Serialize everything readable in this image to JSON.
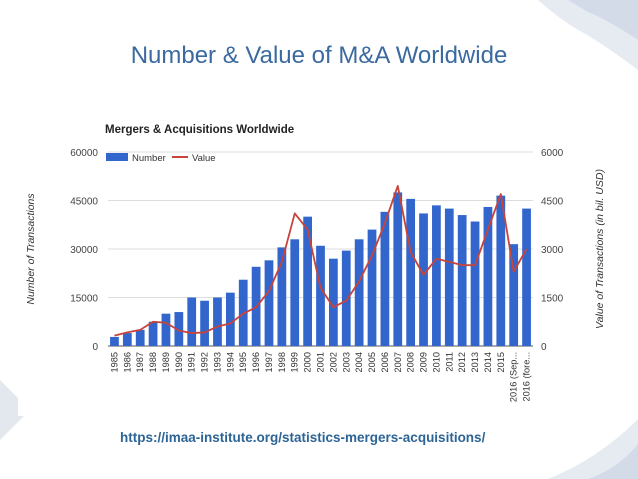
{
  "slide": {
    "title": "Number & Value of M&A Worldwide",
    "source_url": "https://imaa-institute.org/statistics-mergers-acquisitions/"
  },
  "colors": {
    "title": "#3a6aa0",
    "bar": "#3366cc",
    "line": "#c8433a",
    "link": "#2c6496"
  },
  "chart_data": {
    "type": "bar",
    "title": "Mergers & Acquisitions Worldwide",
    "ylabel": "Number of Transactions",
    "y2label": "Value of Transactions (in bil. USD)",
    "categories": [
      "1985",
      "1986",
      "1987",
      "1988",
      "1989",
      "1990",
      "1991",
      "1992",
      "1993",
      "1994",
      "1995",
      "1996",
      "1997",
      "1998",
      "1999",
      "2000",
      "2001",
      "2002",
      "2003",
      "2004",
      "2005",
      "2006",
      "2007",
      "2008",
      "2009",
      "2010",
      "2011",
      "2012",
      "2013",
      "2014",
      "2015",
      "2016 (Sep...",
      "2016 (fore..."
    ],
    "ylim": [
      0,
      60000
    ],
    "y2lim": [
      0,
      6000
    ],
    "yticks": [
      "0",
      "15000",
      "30000",
      "45000",
      "60000"
    ],
    "y2ticks": [
      "0",
      "1500",
      "3000",
      "4500",
      "6000"
    ],
    "legend_position": "top-left",
    "grid": true,
    "series": [
      {
        "name": "Number",
        "type": "bar",
        "axis": "left",
        "values": [
          2800,
          4000,
          5000,
          7500,
          10000,
          10500,
          15000,
          14000,
          15000,
          16500,
          20500,
          24500,
          26500,
          30500,
          33000,
          40000,
          31000,
          27000,
          29500,
          33000,
          36000,
          41500,
          47500,
          45500,
          41000,
          43500,
          42500,
          40500,
          38500,
          43000,
          46500,
          31500,
          42500
        ]
      },
      {
        "name": "Value",
        "type": "line",
        "axis": "right",
        "values": [
          320,
          420,
          500,
          750,
          720,
          480,
          400,
          420,
          600,
          700,
          1000,
          1200,
          1700,
          2600,
          4100,
          3600,
          1800,
          1200,
          1400,
          2000,
          2800,
          3800,
          4950,
          2900,
          2200,
          2700,
          2600,
          2500,
          2500,
          3600,
          4700,
          2300,
          3000
        ]
      }
    ]
  }
}
